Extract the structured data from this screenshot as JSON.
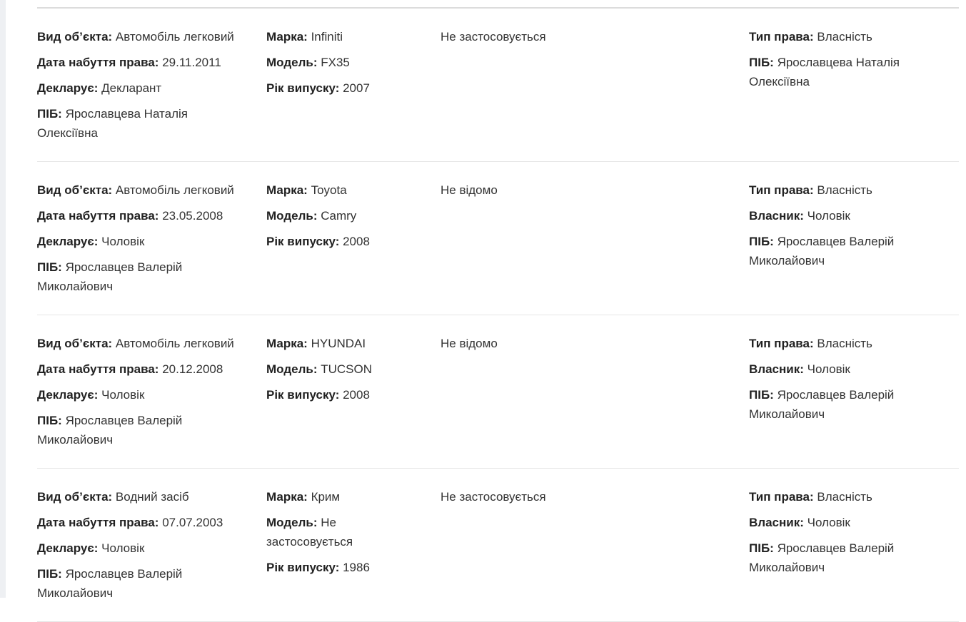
{
  "rows": [
    {
      "object": [
        {
          "label": "Вид об’єкта:",
          "value": "Автомобіль легковий"
        },
        {
          "label": "Дата набуття права:",
          "value": "29.11.2011"
        },
        {
          "label": "Декларує:",
          "value": "Декларант"
        },
        {
          "label": "ПІБ:",
          "value": "Ярославцева Наталія Олексіївна"
        }
      ],
      "vehicle": [
        {
          "label": "Марка:",
          "value": "Infiniti"
        },
        {
          "label": "Модель:",
          "value": "FX35"
        },
        {
          "label": "Рік випуску:",
          "value": "2007"
        }
      ],
      "status": "Не застосовується",
      "rights": [
        {
          "label": "Тип права:",
          "value": "Власність"
        },
        {
          "label": "ПІБ:",
          "value": "Ярославцева Наталія Олексіївна"
        }
      ]
    },
    {
      "object": [
        {
          "label": "Вид об’єкта:",
          "value": "Автомобіль легковий"
        },
        {
          "label": "Дата набуття права:",
          "value": "23.05.2008"
        },
        {
          "label": "Декларує:",
          "value": "Чоловік"
        },
        {
          "label": "ПІБ:",
          "value": "Ярославцев Валерій Миколайович"
        }
      ],
      "vehicle": [
        {
          "label": "Марка:",
          "value": "Toyota"
        },
        {
          "label": "Модель:",
          "value": "Camry"
        },
        {
          "label": "Рік випуску:",
          "value": "2008"
        }
      ],
      "status": "Не відомо",
      "rights": [
        {
          "label": "Тип права:",
          "value": "Власність"
        },
        {
          "label": "Власник:",
          "value": "Чоловік"
        },
        {
          "label": "ПІБ:",
          "value": "Ярославцев Валерій Миколайович"
        }
      ]
    },
    {
      "object": [
        {
          "label": "Вид об’єкта:",
          "value": "Автомобіль легковий"
        },
        {
          "label": "Дата набуття права:",
          "value": "20.12.2008"
        },
        {
          "label": "Декларує:",
          "value": "Чоловік"
        },
        {
          "label": "ПІБ:",
          "value": "Ярославцев Валерій Миколайович"
        }
      ],
      "vehicle": [
        {
          "label": "Марка:",
          "value": "HYUNDAI"
        },
        {
          "label": "Модель:",
          "value": "TUCSON"
        },
        {
          "label": "Рік випуску:",
          "value": "2008"
        }
      ],
      "status": "Не відомо",
      "rights": [
        {
          "label": "Тип права:",
          "value": "Власність"
        },
        {
          "label": "Власник:",
          "value": "Чоловік"
        },
        {
          "label": "ПІБ:",
          "value": "Ярославцев Валерій Миколайович"
        }
      ]
    },
    {
      "object": [
        {
          "label": "Вид об’єкта:",
          "value": "Водний засіб"
        },
        {
          "label": "Дата набуття права:",
          "value": "07.07.2003"
        },
        {
          "label": "Декларує:",
          "value": "Чоловік"
        },
        {
          "label": "ПІБ:",
          "value": "Ярославцев Валерій Миколайович"
        }
      ],
      "vehicle": [
        {
          "label": "Марка:",
          "value": "Крим"
        },
        {
          "label": "Модель:",
          "value": "Не застосовується"
        },
        {
          "label": "Рік випуску:",
          "value": "1986"
        }
      ],
      "status": "Не застосовується",
      "rights": [
        {
          "label": "Тип права:",
          "value": "Власність"
        },
        {
          "label": "Власник:",
          "value": "Чоловік"
        },
        {
          "label": "ПІБ:",
          "value": "Ярославцев Валерій Миколайович"
        }
      ]
    }
  ]
}
